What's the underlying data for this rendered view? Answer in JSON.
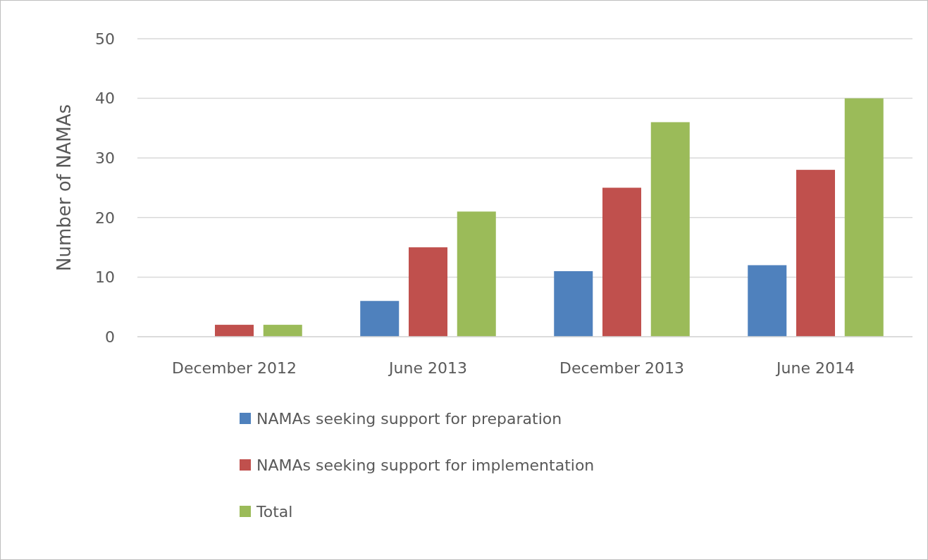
{
  "chart_data": {
    "type": "bar",
    "ylabel": "Number of NAMAs",
    "categories": [
      "December 2012",
      "June 2013",
      "December 2013",
      "June 2014"
    ],
    "series": [
      {
        "name": "NAMAs seeking support for preparation",
        "color": "#4f81bd",
        "values": [
          0,
          6,
          11,
          12
        ]
      },
      {
        "name": "NAMAs seeking support for implementation",
        "color": "#c0504d",
        "values": [
          2,
          15,
          25,
          28
        ]
      },
      {
        "name": "Total",
        "color": "#9bbb59",
        "values": [
          2,
          21,
          36,
          40
        ]
      }
    ],
    "ylim": [
      0,
      50
    ],
    "yticks": [
      0,
      10,
      20,
      30,
      40,
      50
    ],
    "grid": "y",
    "legend": "bottom"
  }
}
